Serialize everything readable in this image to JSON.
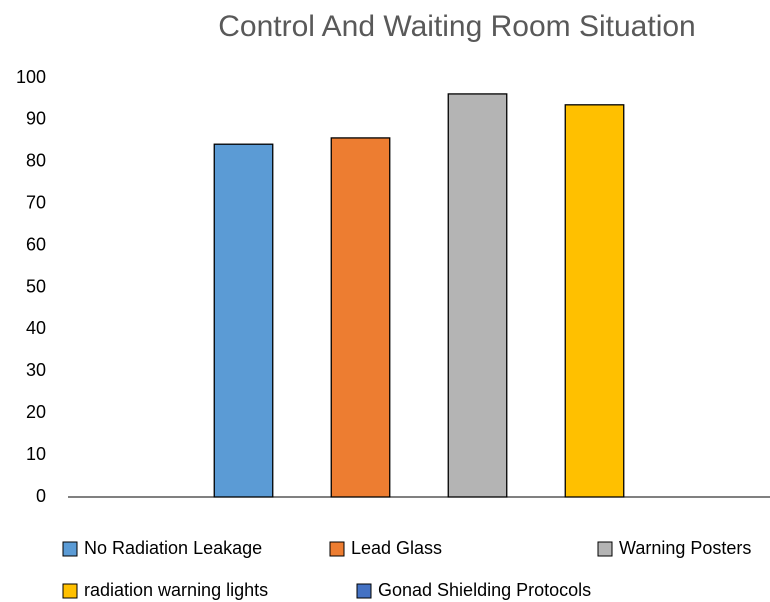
{
  "chart_data": {
    "type": "bar",
    "title": "Control And Waiting Room Situation",
    "series": [
      {
        "name": "No Radiation Leakage",
        "color": "#5b9bd5",
        "values": [
          84.2
        ]
      },
      {
        "name": "Lead Glass",
        "color": "#ed7d31",
        "values": [
          85.7
        ]
      },
      {
        "name": "Warning Posters",
        "color": "#b4b4b4",
        "values": [
          96.2
        ]
      },
      {
        "name": "radiation warning lights",
        "color": "#ffc000",
        "values": [
          93.6
        ]
      },
      {
        "name": "Gonad Shielding Protocols",
        "color": "#4472c4",
        "values": [
          0
        ]
      }
    ],
    "ylim": [
      0,
      100
    ],
    "yticks": [
      0,
      10,
      20,
      30,
      40,
      50,
      60,
      70,
      80,
      90,
      100
    ],
    "grid": false,
    "legend": "bottom"
  }
}
